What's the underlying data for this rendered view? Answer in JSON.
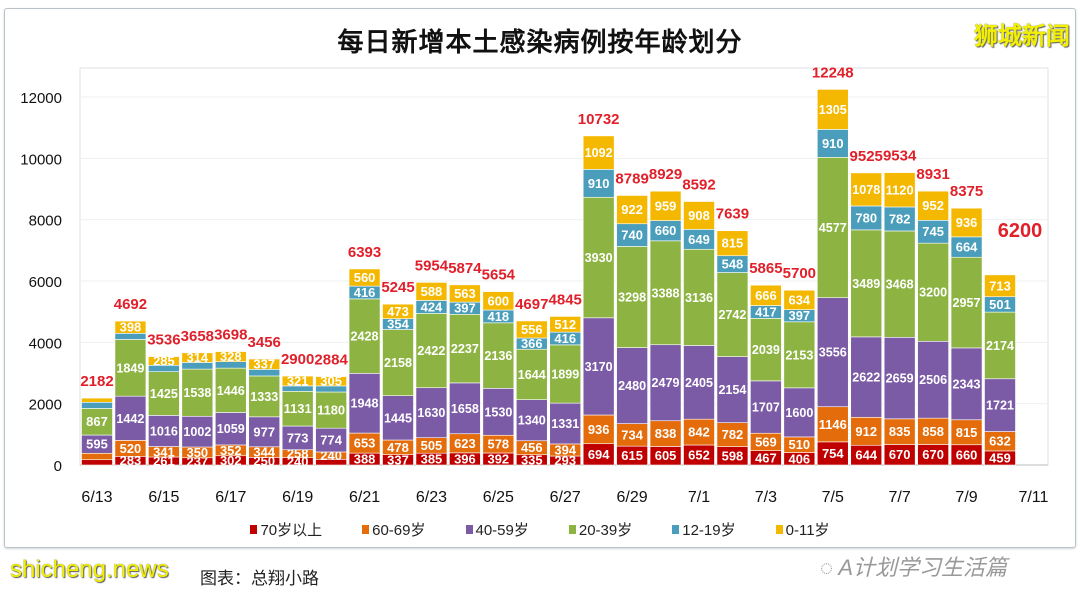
{
  "chart_data": {
    "type": "bar",
    "stacked": true,
    "title": "每日新增本土感染病例按年龄划分",
    "xlabel": "",
    "ylabel": "",
    "ylim": [
      0,
      13000
    ],
    "yticks": [
      0,
      2000,
      4000,
      6000,
      8000,
      10000,
      12000
    ],
    "grid": true,
    "legend_position": "bottom",
    "xtick_labels": [
      "6/13",
      "6/15",
      "6/17",
      "6/19",
      "6/21",
      "6/23",
      "6/25",
      "6/27",
      "6/29",
      "7/1",
      "7/3",
      "7/5",
      "7/7",
      "7/9",
      "7/11"
    ],
    "categories": [
      "6/13",
      "6/14",
      "6/15",
      "6/16",
      "6/17",
      "6/18",
      "6/19",
      "6/20",
      "6/21",
      "6/22",
      "6/23",
      "6/24",
      "6/25",
      "6/26",
      "6/27",
      "6/28",
      "6/29",
      "6/30",
      "7/1",
      "7/2",
      "7/3",
      "7/4",
      "7/5",
      "7/6",
      "7/7",
      "7/8",
      "7/9",
      "7/10",
      "7/11"
    ],
    "series": [
      {
        "name": "70岁以上",
        "color": "#c00000",
        "values": [
          172,
          283,
          261,
          237,
          302,
          250,
          240,
          186,
          388,
          337,
          385,
          396,
          392,
          335,
          293,
          694,
          615,
          605,
          652,
          598,
          467,
          406,
          754,
          644,
          670,
          670,
          660,
          459,
          null
        ]
      },
      {
        "name": "60-69岁",
        "color": "#e46c0a",
        "values": [
          210,
          520,
          341,
          350,
          352,
          344,
          258,
          240,
          653,
          478,
          505,
          623,
          578,
          456,
          394,
          936,
          734,
          838,
          842,
          782,
          569,
          510,
          1146,
          912,
          835,
          858,
          815,
          632,
          null
        ]
      },
      {
        "name": "40-59岁",
        "color": "#7c5ba6",
        "values": [
          595,
          1442,
          1016,
          1002,
          1059,
          977,
          773,
          774,
          1948,
          1445,
          1630,
          1658,
          1530,
          1340,
          1331,
          3170,
          2480,
          2479,
          2405,
          2154,
          1707,
          1600,
          3556,
          2622,
          2659,
          2506,
          2343,
          1721,
          null
        ]
      },
      {
        "name": "20-39岁",
        "color": "#8db443",
        "values": [
          867,
          1849,
          1425,
          1538,
          1446,
          1333,
          1131,
          1180,
          2428,
          2158,
          2422,
          2237,
          2136,
          1644,
          1899,
          3930,
          3298,
          3388,
          3136,
          2742,
          2039,
          2153,
          4577,
          3489,
          3468,
          3200,
          2957,
          2174,
          null
        ]
      },
      {
        "name": "12-19岁",
        "color": "#4a9ebb",
        "values": [
          201,
          200,
          208,
          217,
          211,
          215,
          177,
          199,
          416,
          354,
          424,
          397,
          418,
          366,
          416,
          910,
          740,
          660,
          649,
          548,
          417,
          397,
          910,
          780,
          782,
          745,
          664,
          501,
          null
        ]
      },
      {
        "name": "0-11岁",
        "color": "#f5b800",
        "values": [
          137,
          398,
          285,
          314,
          328,
          337,
          321,
          305,
          560,
          473,
          588,
          563,
          600,
          556,
          512,
          1092,
          922,
          959,
          908,
          815,
          666,
          634,
          1305,
          1078,
          1120,
          952,
          936,
          713,
          null
        ]
      }
    ],
    "totals": [
      2182,
      4692,
      3536,
      3658,
      3698,
      3456,
      2900,
      2884,
      6393,
      5245,
      5954,
      5874,
      5654,
      4697,
      4845,
      10732,
      8789,
      8929,
      8592,
      7639,
      5865,
      5700,
      12248,
      9525,
      9534,
      8931,
      8375,
      6200,
      null
    ],
    "total_label_color": "#e0202a"
  },
  "watermarks": {
    "top_right": "狮城新闻",
    "site": "shicheng.news",
    "wechat": "A计划学习生活篇"
  },
  "caption": "图表：总翔小路"
}
